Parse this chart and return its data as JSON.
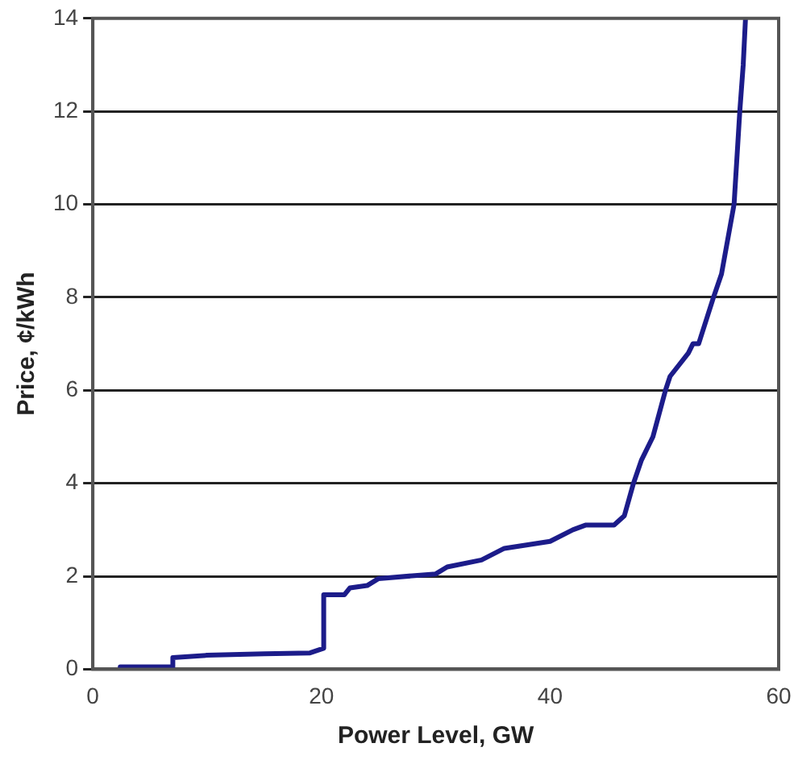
{
  "chart_data": {
    "type": "line",
    "xlabel": "Power Level, GW",
    "ylabel": "Price, ¢/kWh",
    "xlim": [
      0,
      60
    ],
    "xticks": [
      0,
      20,
      40,
      60
    ],
    "ylim": [
      0,
      14
    ],
    "yticks": [
      0,
      2,
      4,
      6,
      8,
      10,
      12,
      14
    ],
    "grid": "y",
    "legend": false,
    "marker": "none",
    "line_style": "solid",
    "series": [
      {
        "color": "#1c1c8a",
        "x": [
          2.4,
          7.0,
          7.0,
          10,
          15,
          19,
          20.2,
          20.2,
          22,
          22.5,
          24,
          25,
          30,
          31,
          34,
          36,
          40,
          42,
          43.1,
          45.6,
          46.5,
          47.3,
          48,
          49,
          50.1,
          50.5,
          52.1,
          52.5,
          53,
          54.3,
          55,
          56.1,
          56.6,
          56.9,
          57.1
        ],
        "values": [
          0.05,
          0.05,
          0.25,
          0.3,
          0.33,
          0.35,
          0.45,
          1.6,
          1.6,
          1.75,
          1.8,
          1.95,
          2.05,
          2.2,
          2.35,
          2.6,
          2.75,
          3.0,
          3.1,
          3.1,
          3.3,
          4.0,
          4.5,
          5.0,
          6.0,
          6.3,
          6.8,
          7.0,
          7.0,
          8.0,
          8.5,
          10.0,
          12.0,
          13.0,
          14.0
        ]
      }
    ]
  }
}
